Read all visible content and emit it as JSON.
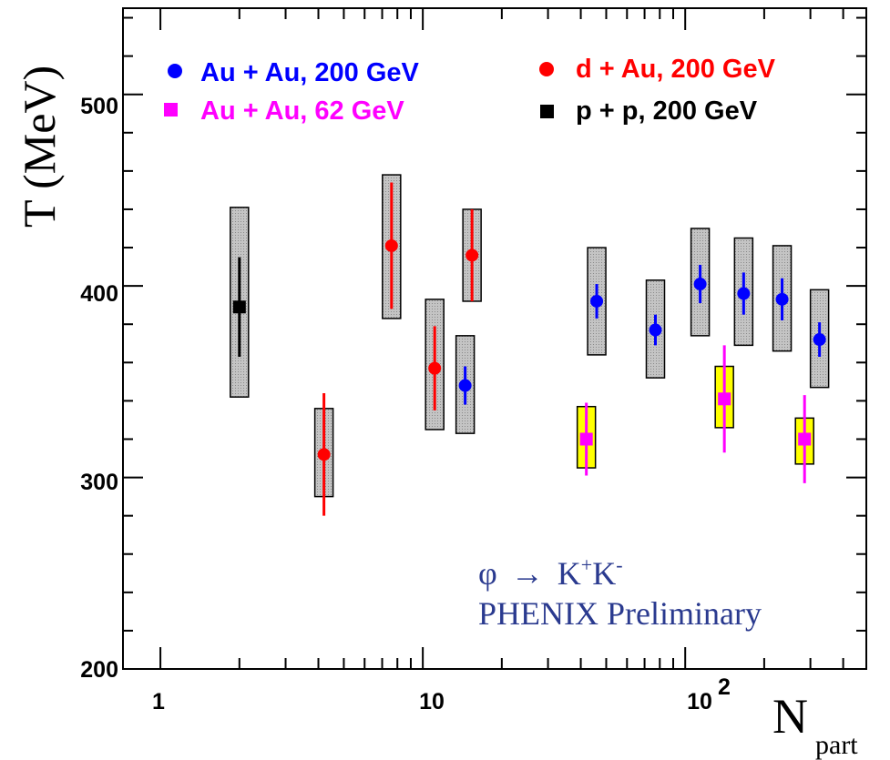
{
  "chart_data": {
    "type": "scatter",
    "title": "",
    "xlabel": "N",
    "xlabel_sub": "part",
    "ylabel": "T (MeV)",
    "xscale": "log",
    "xlim": [
      0.72,
      490
    ],
    "ylim": [
      200,
      545
    ],
    "x_tick_labels": [
      {
        "value": 1,
        "label": "1"
      },
      {
        "value": 10,
        "label": "10"
      },
      {
        "value": 100,
        "label": "10",
        "sup": "2"
      }
    ],
    "y_tick_labels": [
      {
        "value": 200,
        "label": "200"
      },
      {
        "value": 300,
        "label": "300"
      },
      {
        "value": 400,
        "label": "400"
      },
      {
        "value": 500,
        "label": "500"
      }
    ],
    "legend_position": "top",
    "series": [
      {
        "name": "Au + Au, 200 GeV",
        "color": "#0000ff",
        "marker": "circle",
        "sys_fill": "#bdbdbd",
        "points": [
          {
            "x": 14.5,
            "y": 348,
            "err": 10,
            "sys_lo": 323,
            "sys_hi": 374
          },
          {
            "x": 46,
            "y": 392,
            "err": 9,
            "sys_lo": 364,
            "sys_hi": 420
          },
          {
            "x": 77,
            "y": 377,
            "err": 8,
            "sys_lo": 352,
            "sys_hi": 403
          },
          {
            "x": 114,
            "y": 401,
            "err": 10,
            "sys_lo": 374,
            "sys_hi": 430
          },
          {
            "x": 167,
            "y": 396,
            "err": 11,
            "sys_lo": 369,
            "sys_hi": 425
          },
          {
            "x": 234,
            "y": 393,
            "err": 11,
            "sys_lo": 366,
            "sys_hi": 421
          },
          {
            "x": 325,
            "y": 372,
            "err": 9,
            "sys_lo": 347,
            "sys_hi": 398
          }
        ]
      },
      {
        "name": "Au + Au, 62 GeV",
        "color": "#ff00ff",
        "marker": "square",
        "sys_fill": "#ffff00",
        "points": [
          {
            "x": 42,
            "y": 320,
            "err": 19,
            "sys_lo": 305,
            "sys_hi": 337
          },
          {
            "x": 141,
            "y": 341,
            "err": 28,
            "sys_lo": 326,
            "sys_hi": 358
          },
          {
            "x": 285,
            "y": 320,
            "err": 23,
            "sys_lo": 307,
            "sys_hi": 331
          }
        ]
      },
      {
        "name": "d + Au, 200 GeV",
        "color": "#ff0000",
        "marker": "circle",
        "sys_fill": "#bdbdbd",
        "points": [
          {
            "x": 4.2,
            "y": 312,
            "err": 32,
            "sys_lo": 290,
            "sys_hi": 336
          },
          {
            "x": 7.6,
            "y": 421,
            "err": 33,
            "sys_lo": 383,
            "sys_hi": 458
          },
          {
            "x": 11.1,
            "y": 357,
            "err": 22,
            "sys_lo": 325,
            "sys_hi": 393
          },
          {
            "x": 15.4,
            "y": 416,
            "err": 24,
            "sys_lo": 392,
            "sys_hi": 440
          }
        ]
      },
      {
        "name": "p + p, 200 GeV",
        "color": "#000000",
        "marker": "square",
        "sys_fill": "#bdbdbd",
        "points": [
          {
            "x": 2.0,
            "y": 389,
            "err": 26,
            "sys_lo": 342,
            "sys_hi": 441
          }
        ]
      }
    ],
    "annotations": {
      "reaction": {
        "phi": "φ",
        "arrow": "→",
        "k": "K",
        "plus": "+",
        "minus": "-"
      },
      "collab": "PHENIX Preliminary"
    }
  }
}
